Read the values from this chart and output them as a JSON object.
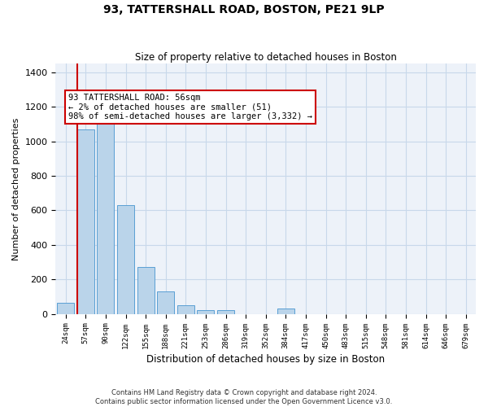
{
  "title": "93, TATTERSHALL ROAD, BOSTON, PE21 9LP",
  "subtitle": "Size of property relative to detached houses in Boston",
  "xlabel": "Distribution of detached houses by size in Boston",
  "ylabel": "Number of detached properties",
  "bar_color": "#bad4ea",
  "bar_edge_color": "#5a9fd4",
  "grid_color": "#c8d8ea",
  "background_color": "#edf2f9",
  "property_line_color": "#cc0000",
  "annotation_text": "93 TATTERSHALL ROAD: 56sqm\n← 2% of detached houses are smaller (51)\n98% of semi-detached houses are larger (3,332) →",
  "footnote": "Contains HM Land Registry data © Crown copyright and database right 2024.\nContains public sector information licensed under the Open Government Licence v3.0.",
  "bin_labels": [
    "24sqm",
    "57sqm",
    "90sqm",
    "122sqm",
    "155sqm",
    "188sqm",
    "221sqm",
    "253sqm",
    "286sqm",
    "319sqm",
    "352sqm",
    "384sqm",
    "417sqm",
    "450sqm",
    "483sqm",
    "515sqm",
    "548sqm",
    "581sqm",
    "614sqm",
    "646sqm",
    "679sqm"
  ],
  "bar_values": [
    65,
    1070,
    1155,
    630,
    270,
    130,
    50,
    20,
    20,
    0,
    0,
    30,
    0,
    0,
    0,
    0,
    0,
    0,
    0,
    0,
    0
  ],
  "ylim": [
    0,
    1450
  ],
  "yticks": [
    0,
    200,
    400,
    600,
    800,
    1000,
    1200,
    1400
  ]
}
